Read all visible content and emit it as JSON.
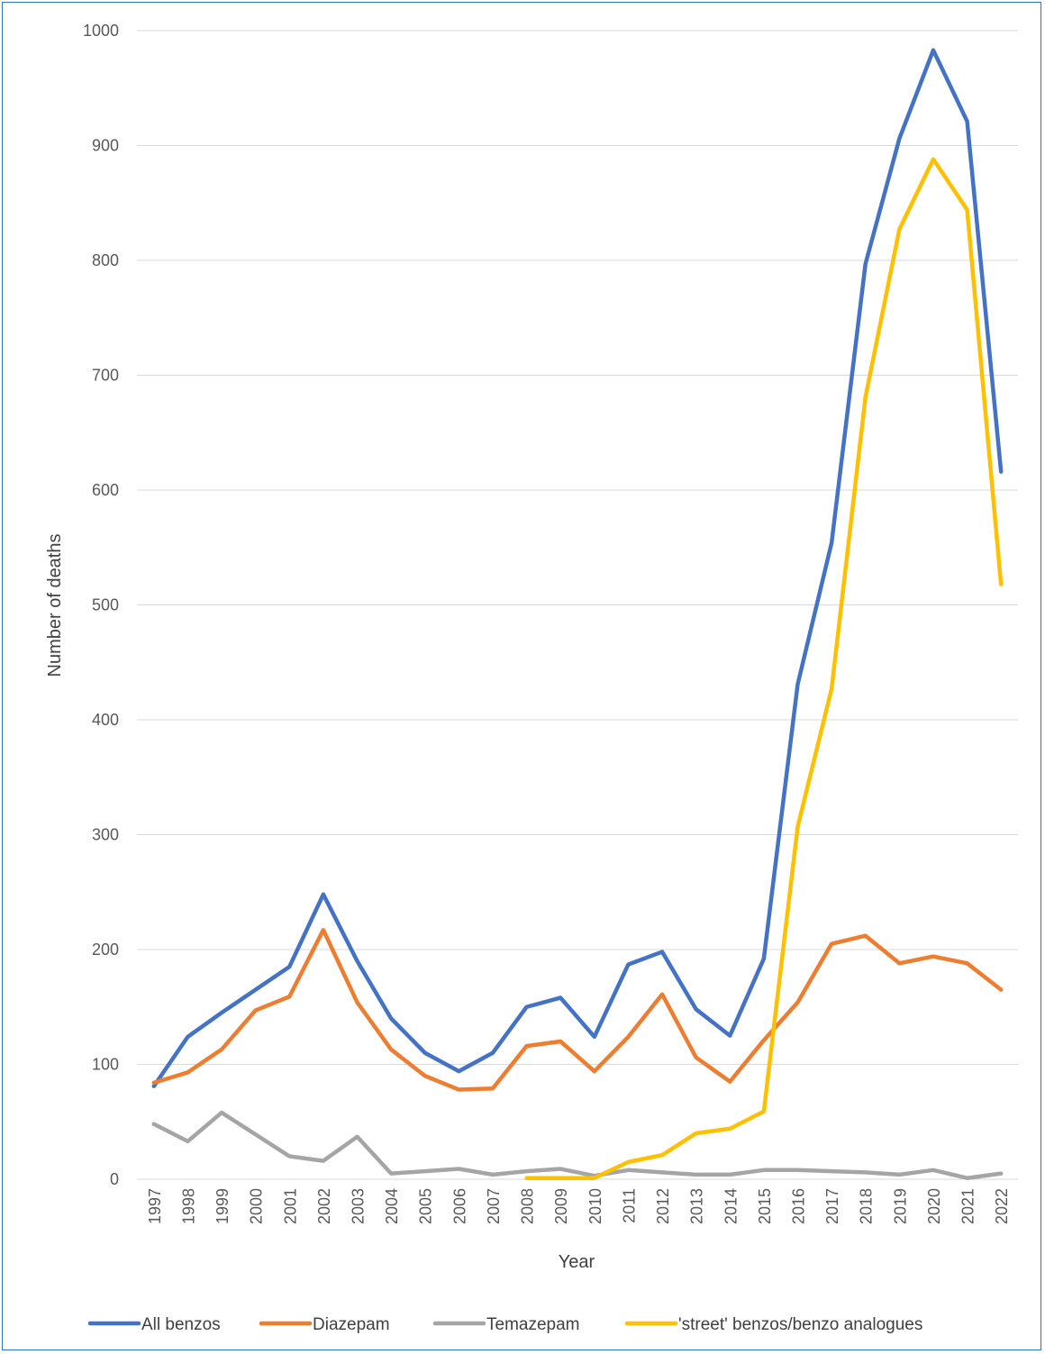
{
  "chart_data": {
    "type": "line",
    "title": "",
    "xlabel": "Year",
    "ylabel": "Number of deaths",
    "ylim": [
      0,
      1000
    ],
    "yticks": [
      0,
      100,
      200,
      300,
      400,
      500,
      600,
      700,
      800,
      900,
      1000
    ],
    "grid": true,
    "legend_position": "bottom",
    "categories": [
      "1997",
      "1998",
      "1999",
      "2000",
      "2001",
      "2002",
      "2003",
      "2004",
      "2005",
      "2006",
      "2007",
      "2008",
      "2009",
      "2010",
      "2011",
      "2012",
      "2013",
      "2014",
      "2015",
      "2016",
      "2017",
      "2018",
      "2019",
      "2020",
      "2021",
      "2022"
    ],
    "series": [
      {
        "name": "All benzos",
        "color": "#4472c4",
        "values": [
          81,
          124,
          145,
          165,
          185,
          248,
          190,
          140,
          110,
          94,
          110,
          150,
          158,
          124,
          187,
          198,
          148,
          125,
          192,
          431,
          554,
          797,
          906,
          983,
          921,
          616
        ]
      },
      {
        "name": "Diazepam",
        "color": "#ed7d31",
        "values": [
          84,
          93,
          113,
          147,
          159,
          217,
          154,
          113,
          90,
          78,
          79,
          116,
          120,
          94,
          124,
          161,
          106,
          85,
          121,
          154,
          205,
          212,
          188,
          194,
          188,
          165
        ]
      },
      {
        "name": "Temazepam",
        "color": "#a5a5a5",
        "values": [
          48,
          33,
          58,
          39,
          20,
          16,
          37,
          5,
          7,
          9,
          4,
          7,
          9,
          3,
          8,
          6,
          4,
          4,
          8,
          8,
          7,
          6,
          4,
          8,
          1,
          5
        ]
      },
      {
        "name": "'street' benzos/benzo analogues",
        "color": "#ffc000",
        "values": [
          null,
          null,
          null,
          null,
          null,
          null,
          null,
          null,
          null,
          null,
          null,
          1,
          1,
          1,
          15,
          21,
          40,
          44,
          59,
          307,
          427,
          681,
          827,
          888,
          844,
          518
        ]
      }
    ]
  }
}
